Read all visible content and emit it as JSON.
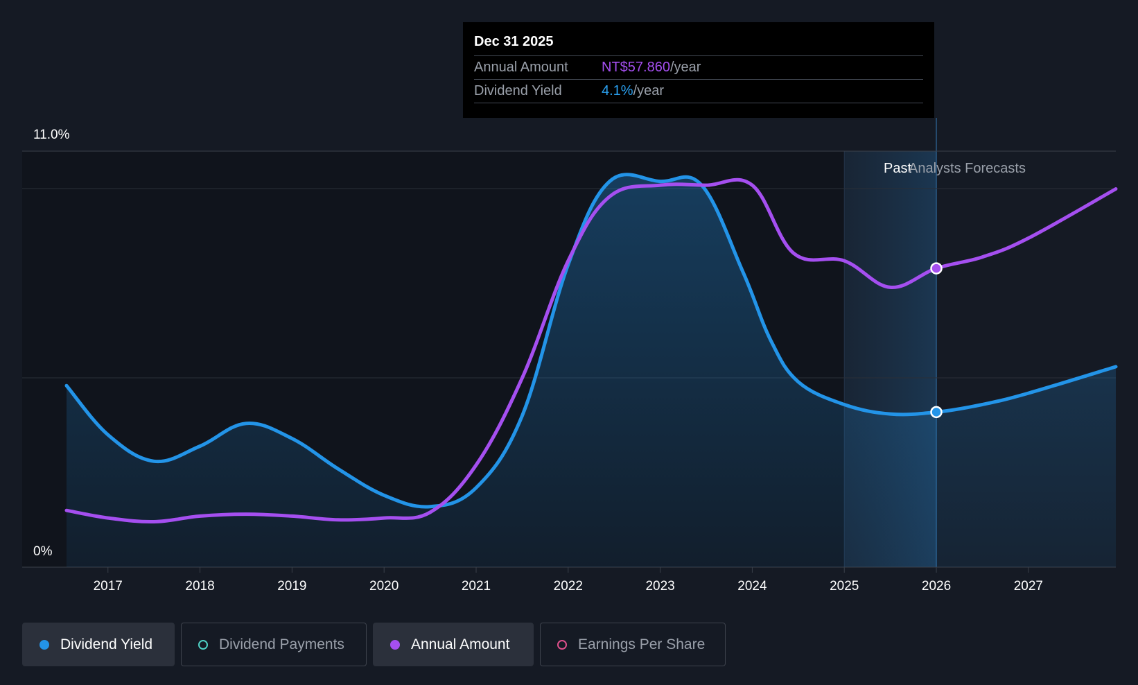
{
  "tooltip": {
    "date": "Dec 31 2025",
    "rows": [
      {
        "label": "Annual Amount",
        "value": "NT$57.860",
        "unit": "/year"
      },
      {
        "label": "Dividend Yield",
        "value": "4.1%",
        "unit": "/year"
      }
    ]
  },
  "legend": [
    {
      "label": "Dividend Yield",
      "active": true,
      "color": "#2394e8",
      "filled": true
    },
    {
      "label": "Dividend Payments",
      "active": false,
      "color": "#4fd1c5",
      "filled": false
    },
    {
      "label": "Annual Amount",
      "active": true,
      "color": "#a54ff0",
      "filled": true
    },
    {
      "label": "Earnings Per Share",
      "active": false,
      "color": "#e0508c",
      "filled": false
    }
  ],
  "chart_data": {
    "type": "line",
    "y_axis_labels": [
      "11.0%",
      "0%"
    ],
    "ylim": [
      0,
      11
    ],
    "xlim": [
      2016.55,
      2027.95
    ],
    "x_ticks": [
      2017,
      2018,
      2019,
      2020,
      2021,
      2022,
      2023,
      2024,
      2025,
      2026,
      2027
    ],
    "regions": {
      "past_label": "Past",
      "forecast_label": "Analysts Forecasts",
      "past_start": 2025.0,
      "divider": 2026.0
    },
    "highlight_x": 2026.0,
    "series": [
      {
        "name": "Dividend Yield",
        "color": "#2394e8",
        "area": true,
        "points": [
          [
            2016.55,
            4.8
          ],
          [
            2017.0,
            3.5
          ],
          [
            2017.5,
            2.8
          ],
          [
            2018.0,
            3.2
          ],
          [
            2018.5,
            3.8
          ],
          [
            2019.0,
            3.4
          ],
          [
            2019.5,
            2.6
          ],
          [
            2020.0,
            1.9
          ],
          [
            2020.5,
            1.6
          ],
          [
            2021.0,
            2.1
          ],
          [
            2021.5,
            4.0
          ],
          [
            2022.0,
            8.0
          ],
          [
            2022.45,
            10.2
          ],
          [
            2023.0,
            10.2
          ],
          [
            2023.45,
            10.1
          ],
          [
            2023.9,
            7.8
          ],
          [
            2024.2,
            6.0
          ],
          [
            2024.5,
            4.9
          ],
          [
            2025.0,
            4.3
          ],
          [
            2025.5,
            4.05
          ],
          [
            2026.0,
            4.1
          ],
          [
            2026.5,
            4.3
          ],
          [
            2027.0,
            4.6
          ],
          [
            2027.95,
            5.3
          ]
        ]
      },
      {
        "name": "Annual Amount",
        "color": "#a54ff0",
        "area": false,
        "points": [
          [
            2016.55,
            1.5
          ],
          [
            2017.0,
            1.3
          ],
          [
            2017.5,
            1.2
          ],
          [
            2018.0,
            1.35
          ],
          [
            2018.5,
            1.4
          ],
          [
            2019.0,
            1.35
          ],
          [
            2019.5,
            1.25
          ],
          [
            2020.0,
            1.3
          ],
          [
            2020.5,
            1.45
          ],
          [
            2021.0,
            2.7
          ],
          [
            2021.5,
            5.0
          ],
          [
            2022.0,
            8.1
          ],
          [
            2022.45,
            9.8
          ],
          [
            2023.0,
            10.1
          ],
          [
            2023.5,
            10.1
          ],
          [
            2024.0,
            10.1
          ],
          [
            2024.45,
            8.3
          ],
          [
            2025.0,
            8.1
          ],
          [
            2025.5,
            7.4
          ],
          [
            2026.0,
            7.9
          ],
          [
            2026.5,
            8.2
          ],
          [
            2027.0,
            8.7
          ],
          [
            2027.95,
            10.0
          ]
        ]
      }
    ]
  }
}
